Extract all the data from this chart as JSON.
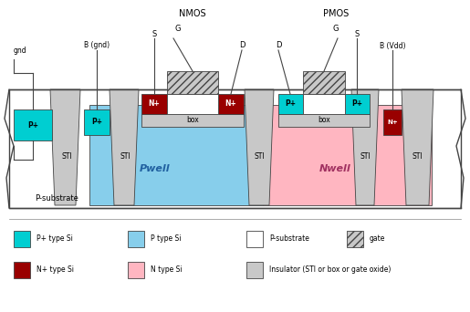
{
  "colors": {
    "p_plus": "#00CED1",
    "p_type": "#87CEEB",
    "n_plus": "#990000",
    "n_type": "#FFB6C1",
    "insulator": "#C8C8C8",
    "white": "#FFFFFF",
    "border": "#444444",
    "substrate_bg": "#FFFFFF"
  },
  "legend": {
    "p_plus_label": "P+ type Si",
    "p_type_label": "P type Si",
    "n_plus_label": "N+ type Si",
    "n_type_label": "N type Si",
    "substrate_label": "P-substrate",
    "gate_label": "gate",
    "insulator_label": "Insulator (STI or box or gate oxide)"
  },
  "labels": {
    "nmos": "NMOS",
    "pmos": "PMOS",
    "pwell": "Pwell",
    "nwell": "Nwell",
    "psubstrate": "P-substrate",
    "gnd": "gnd",
    "bgnd": "B (gnd)",
    "bvdd": "B (Vdd)"
  }
}
